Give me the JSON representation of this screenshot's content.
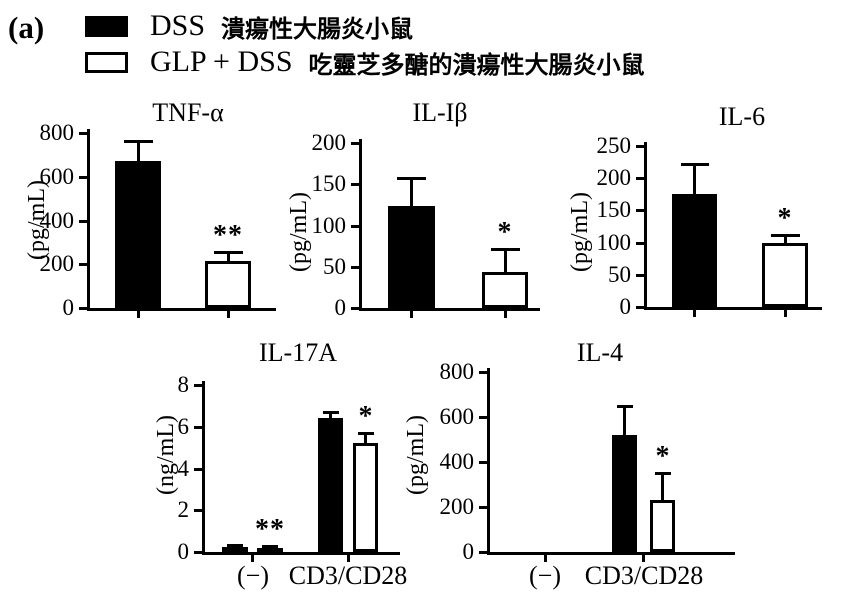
{
  "figure": {
    "label": "(a)"
  },
  "legend": {
    "items": [
      {
        "swatch": "black",
        "code": "DSS",
        "desc": "潰瘍性大腸炎小鼠"
      },
      {
        "swatch": "white",
        "code": "GLP + DSS",
        "desc": "吃靈芝多醣的潰瘍性大腸炎小鼠"
      }
    ]
  },
  "colors": {
    "dss_fill": "#000000",
    "glp_fill": "#ffffff",
    "axis": "#000000",
    "background": "#ffffff"
  },
  "chart_data": [
    {
      "type": "bar",
      "title": "TNF-α",
      "ylabel": "(pg/mL)",
      "ylim": [
        0,
        800
      ],
      "yticks": [
        0,
        200,
        400,
        600,
        800
      ],
      "series_names": [
        "DSS",
        "GLP + DSS"
      ],
      "groups": [
        {
          "label": "",
          "bars": [
            {
              "series": "DSS",
              "value": 670,
              "error_top": 765,
              "sig": ""
            },
            {
              "series": "GLP + DSS",
              "value": 215,
              "error_top": 258,
              "sig": "**"
            }
          ]
        }
      ]
    },
    {
      "type": "bar",
      "title": "IL-Iβ",
      "ylabel": "(pg/mL)",
      "ylim": [
        0,
        200
      ],
      "yticks": [
        0,
        50,
        100,
        150,
        200
      ],
      "series_names": [
        "DSS",
        "GLP + DSS"
      ],
      "groups": [
        {
          "label": "",
          "bars": [
            {
              "series": "DSS",
              "value": 124,
              "error_top": 158,
              "sig": ""
            },
            {
              "series": "GLP + DSS",
              "value": 44,
              "error_top": 72,
              "sig": "*"
            }
          ]
        }
      ]
    },
    {
      "type": "bar",
      "title": "IL-6",
      "ylabel": "(pg/mL)",
      "ylim": [
        0,
        250
      ],
      "yticks": [
        0,
        50,
        100,
        150,
        200,
        250
      ],
      "series_names": [
        "DSS",
        "GLP + DSS"
      ],
      "groups": [
        {
          "label": "",
          "bars": [
            {
              "series": "DSS",
              "value": 175,
              "error_top": 222,
              "sig": ""
            },
            {
              "series": "GLP + DSS",
              "value": 99,
              "error_top": 112,
              "sig": "*"
            }
          ]
        }
      ]
    },
    {
      "type": "bar",
      "title": "IL-17A",
      "ylabel": "(ng/mL)",
      "ylim": [
        0,
        8
      ],
      "yticks": [
        0,
        2,
        4,
        6,
        8
      ],
      "series_names": [
        "DSS",
        "GLP + DSS"
      ],
      "groups": [
        {
          "label": "(−)",
          "bars": [
            {
              "series": "DSS",
              "value": 0.25,
              "error_top": 0.32,
              "sig": ""
            },
            {
              "series": "GLP + DSS",
              "value": 0.18,
              "error_top": 0.27,
              "sig": "**"
            }
          ]
        },
        {
          "label": "CD3/CD28",
          "bars": [
            {
              "series": "DSS",
              "value": 6.4,
              "error_top": 6.72,
              "sig": ""
            },
            {
              "series": "GLP + DSS",
              "value": 5.2,
              "error_top": 5.72,
              "sig": "*"
            }
          ]
        }
      ]
    },
    {
      "type": "bar",
      "title": "IL-4",
      "ylabel": "(pg/mL)",
      "ylim": [
        0,
        800
      ],
      "yticks": [
        0,
        200,
        400,
        600,
        800
      ],
      "series_names": [
        "DSS",
        "GLP + DSS"
      ],
      "groups": [
        {
          "label": "(−)",
          "bars": [
            {
              "series": "DSS",
              "value": 0,
              "error_top": 0,
              "sig": ""
            },
            {
              "series": "GLP + DSS",
              "value": 0,
              "error_top": 0,
              "sig": ""
            }
          ]
        },
        {
          "label": "CD3/CD28",
          "bars": [
            {
              "series": "DSS",
              "value": 520,
              "error_top": 650,
              "sig": ""
            },
            {
              "series": "GLP + DSS",
              "value": 230,
              "error_top": 350,
              "sig": "*"
            }
          ]
        }
      ]
    }
  ]
}
